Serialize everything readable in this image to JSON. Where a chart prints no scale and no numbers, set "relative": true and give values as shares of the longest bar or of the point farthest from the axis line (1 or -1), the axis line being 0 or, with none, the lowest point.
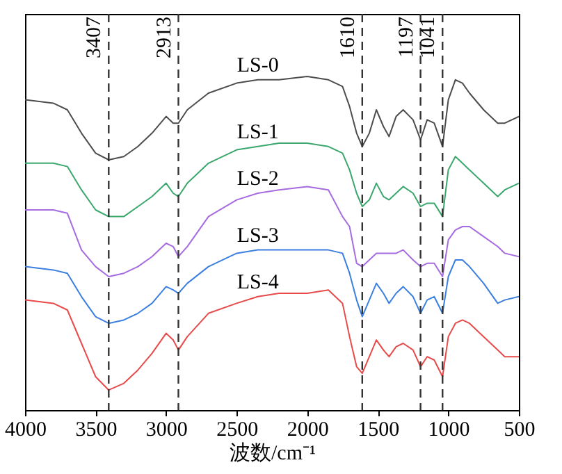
{
  "chart_data": {
    "type": "line",
    "relative": true,
    "xlabel": "波数/cm⁻¹",
    "xlim": [
      4000,
      500
    ],
    "xticks": [
      4000,
      3500,
      3000,
      2500,
      2000,
      1500,
      1000,
      500
    ],
    "grid": false,
    "x": [
      4000,
      3800,
      3700,
      3600,
      3500,
      3407,
      3300,
      3200,
      3100,
      3000,
      2950,
      2913,
      2850,
      2700,
      2500,
      2350,
      2200,
      2000,
      1850,
      1750,
      1700,
      1650,
      1610,
      1560,
      1510,
      1460,
      1420,
      1370,
      1320,
      1250,
      1197,
      1150,
      1100,
      1041,
      1000,
      950,
      900,
      850,
      750,
      650,
      600,
      500
    ],
    "series": [
      {
        "name": "LS-0",
        "color": "#4d4d4d",
        "values": [
          0.93,
          0.92,
          0.9,
          0.83,
          0.77,
          0.75,
          0.76,
          0.79,
          0.83,
          0.88,
          0.86,
          0.86,
          0.9,
          0.95,
          0.98,
          0.99,
          0.99,
          1.0,
          0.99,
          0.97,
          0.91,
          0.83,
          0.79,
          0.83,
          0.9,
          0.85,
          0.82,
          0.88,
          0.9,
          0.87,
          0.81,
          0.87,
          0.86,
          0.79,
          0.93,
          0.99,
          0.98,
          0.95,
          0.9,
          0.86,
          0.86,
          0.88
        ]
      },
      {
        "name": "LS-1",
        "color": "#3aa76d",
        "values": [
          0.74,
          0.74,
          0.73,
          0.66,
          0.6,
          0.58,
          0.58,
          0.61,
          0.64,
          0.68,
          0.65,
          0.64,
          0.68,
          0.74,
          0.78,
          0.79,
          0.8,
          0.8,
          0.79,
          0.77,
          0.72,
          0.65,
          0.61,
          0.63,
          0.68,
          0.64,
          0.63,
          0.65,
          0.67,
          0.65,
          0.61,
          0.62,
          0.62,
          0.58,
          0.72,
          0.76,
          0.74,
          0.72,
          0.68,
          0.64,
          0.66,
          0.68
        ]
      },
      {
        "name": "LS-2",
        "color": "#a66be0",
        "values": [
          0.6,
          0.6,
          0.59,
          0.48,
          0.43,
          0.4,
          0.41,
          0.43,
          0.46,
          0.5,
          0.49,
          0.46,
          0.49,
          0.58,
          0.63,
          0.65,
          0.66,
          0.67,
          0.66,
          0.58,
          0.55,
          0.44,
          0.43,
          0.45,
          0.47,
          0.47,
          0.47,
          0.47,
          0.48,
          0.45,
          0.43,
          0.44,
          0.44,
          0.4,
          0.51,
          0.54,
          0.55,
          0.55,
          0.52,
          0.49,
          0.47,
          0.46
        ]
      },
      {
        "name": "LS-3",
        "color": "#3b7fe0",
        "values": [
          0.43,
          0.42,
          0.41,
          0.34,
          0.28,
          0.26,
          0.27,
          0.29,
          0.32,
          0.37,
          0.36,
          0.35,
          0.38,
          0.43,
          0.47,
          0.48,
          0.48,
          0.48,
          0.48,
          0.47,
          0.41,
          0.33,
          0.28,
          0.33,
          0.38,
          0.35,
          0.32,
          0.35,
          0.37,
          0.34,
          0.29,
          0.33,
          0.34,
          0.29,
          0.4,
          0.45,
          0.45,
          0.43,
          0.38,
          0.32,
          0.33,
          0.34
        ]
      },
      {
        "name": "LS-4",
        "color": "#e84a4a",
        "values": [
          0.33,
          0.32,
          0.3,
          0.2,
          0.1,
          0.06,
          0.08,
          0.12,
          0.17,
          0.23,
          0.21,
          0.18,
          0.22,
          0.29,
          0.32,
          0.34,
          0.35,
          0.35,
          0.36,
          0.32,
          0.22,
          0.13,
          0.11,
          0.16,
          0.21,
          0.18,
          0.16,
          0.19,
          0.2,
          0.18,
          0.13,
          0.16,
          0.15,
          0.1,
          0.22,
          0.26,
          0.27,
          0.26,
          0.22,
          0.18,
          0.16,
          0.16
        ]
      }
    ],
    "ref_lines": [
      {
        "axis": "x",
        "value": 3407,
        "label": "3407",
        "color": "#333333",
        "line_style": "dashed"
      },
      {
        "axis": "x",
        "value": 2913,
        "label": "2913",
        "color": "#333333",
        "line_style": "dashed"
      },
      {
        "axis": "x",
        "value": 1610,
        "label": "1610",
        "color": "#333333",
        "line_style": "dashed"
      },
      {
        "axis": "x",
        "value": 1197,
        "label": "1197",
        "color": "#333333",
        "line_style": "dashed"
      },
      {
        "axis": "x",
        "value": 1041,
        "label": "1041",
        "color": "#333333",
        "line_style": "dashed"
      }
    ]
  }
}
